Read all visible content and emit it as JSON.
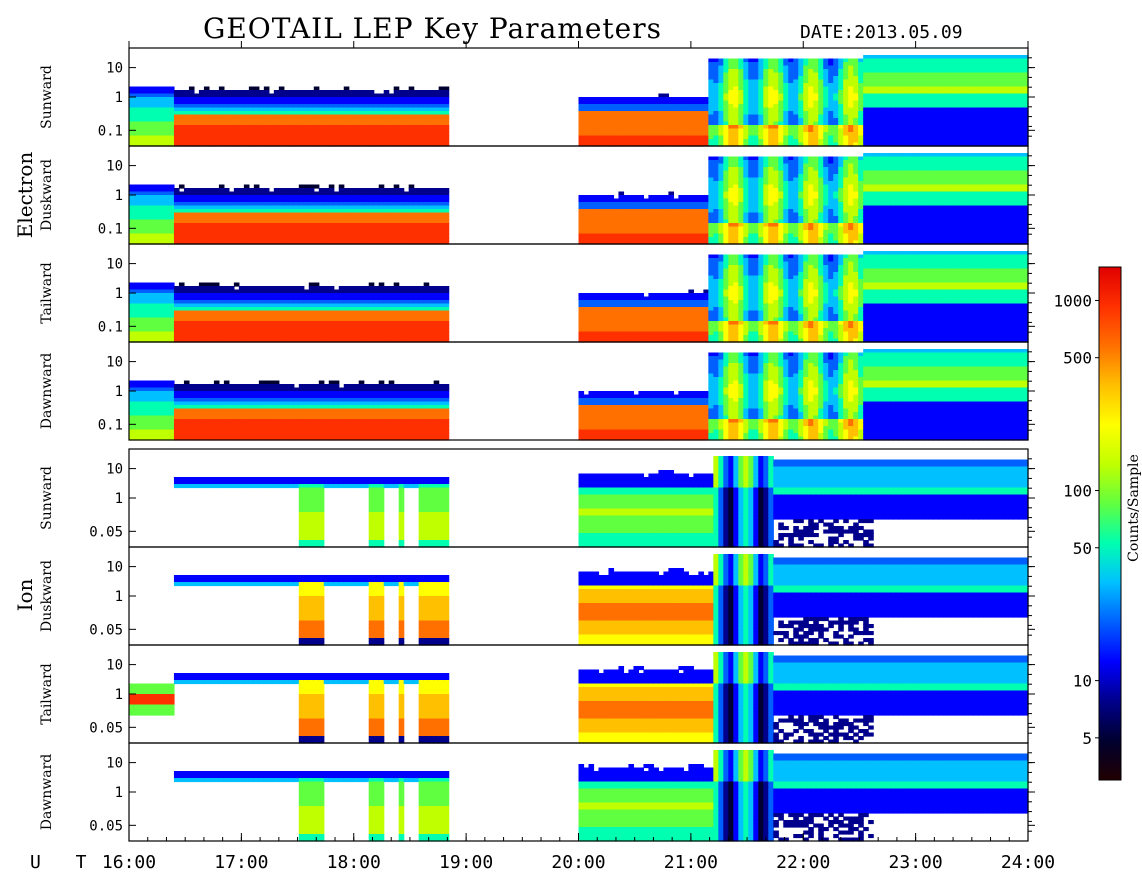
{
  "title": "GEOTAIL LEP Key Parameters",
  "date_label": "DATE:",
  "date_value": "2013.05.09",
  "colors": {
    "cmap": [
      "#200000",
      "#000030",
      "#00008c",
      "#0000ff",
      "#0060ff",
      "#00c0ff",
      "#00ffb0",
      "#60ff40",
      "#c0ff00",
      "#ffff00",
      "#ffc000",
      "#ff7000",
      "#ff3000",
      "#e00000"
    ]
  },
  "chart_data": {
    "type": "heatmap",
    "title": "GEOTAIL LEP Key Parameters",
    "x_axis": {
      "label": "U T",
      "ticks": [
        "16:00",
        "17:00",
        "18:00",
        "19:00",
        "20:00",
        "21:00",
        "22:00",
        "23:00",
        "24:00"
      ],
      "range_hours": [
        16,
        24
      ]
    },
    "data_gaps_hours": [
      [
        18.85,
        20.0
      ]
    ],
    "groups": [
      {
        "name": "Electron",
        "y_ticks": [
          "10",
          "1",
          "0.1"
        ],
        "y_scale": "log",
        "panels": [
          {
            "name": "Sunward"
          },
          {
            "name": "Duskward"
          },
          {
            "name": "Tailward"
          },
          {
            "name": "Dawnward"
          }
        ]
      },
      {
        "name": "Ion",
        "y_ticks": [
          "10",
          "1",
          "0.05"
        ],
        "y_scale": "log",
        "panels": [
          {
            "name": "Sunward"
          },
          {
            "name": "Duskward"
          },
          {
            "name": "Tailward"
          },
          {
            "name": "Dawnward"
          }
        ]
      }
    ],
    "colorbar": {
      "label": "Counts/Sample",
      "scale": "log",
      "ticks": [
        "1000",
        "500",
        "100",
        "50",
        "10",
        "5"
      ],
      "range": [
        3,
        1500
      ]
    }
  }
}
